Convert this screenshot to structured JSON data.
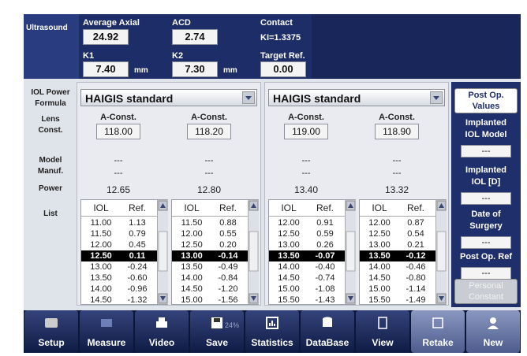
{
  "header": {
    "section": "Ultrasound",
    "fields": [
      {
        "label": "Average Axial",
        "value": "24.92"
      },
      {
        "label": "ACD",
        "value": "2.74"
      },
      {
        "label": "Contact",
        "value": "KI=1.3375"
      },
      {
        "label": "K1",
        "value": "7.40",
        "unit": "mm"
      },
      {
        "label": "K2",
        "value": "7.30",
        "unit": "mm"
      },
      {
        "label": "Target Ref.",
        "value": "0.00"
      }
    ]
  },
  "row_labels": [
    [
      "IOL Power",
      "Formula"
    ],
    [
      "Lens",
      "Const."
    ],
    [
      "Model",
      "Manuf."
    ],
    [
      "Power"
    ],
    [
      "List"
    ]
  ],
  "panels": [
    {
      "formula": "HAIGIS standard",
      "lenses": [
        {
          "const_label": "A-Const.",
          "const": "118.00",
          "model": "---",
          "manuf": "---",
          "power": "12.65",
          "list_headers": [
            "IOL",
            "Ref."
          ],
          "rows": [
            [
              "11.00",
              "1.13"
            ],
            [
              "11.50",
              "0.79"
            ],
            [
              "12.00",
              "0.45"
            ],
            [
              "12.50",
              "0.11"
            ],
            [
              "13.00",
              "-0.24"
            ],
            [
              "13.50",
              "-0.60"
            ],
            [
              "14.00",
              "-0.96"
            ],
            [
              "14.50",
              "-1.32"
            ]
          ]
        },
        {
          "const_label": "A-Const.",
          "const": "118.20",
          "model": "---",
          "manuf": "---",
          "power": "12.80",
          "list_headers": [
            "IOL",
            "Ref."
          ],
          "rows": [
            [
              "11.50",
              "0.88"
            ],
            [
              "12.00",
              "0.55"
            ],
            [
              "12.50",
              "0.20"
            ],
            [
              "13.00",
              "-0.14"
            ],
            [
              "13.50",
              "-0.49"
            ],
            [
              "14.00",
              "-0.84"
            ],
            [
              "14.50",
              "-1.20"
            ],
            [
              "15.00",
              "-1.56"
            ]
          ]
        }
      ]
    },
    {
      "formula": "HAIGIS standard",
      "lenses": [
        {
          "const_label": "A-Const.",
          "const": "119.00",
          "model": "---",
          "manuf": "---",
          "power": "13.40",
          "list_headers": [
            "IOL",
            "Ref."
          ],
          "rows": [
            [
              "12.00",
              "0.91"
            ],
            [
              "12.50",
              "0.59"
            ],
            [
              "13.00",
              "0.26"
            ],
            [
              "13.50",
              "-0.07"
            ],
            [
              "14.00",
              "-0.40"
            ],
            [
              "14.50",
              "-0.74"
            ],
            [
              "15.00",
              "-1.08"
            ],
            [
              "15.50",
              "-1.43"
            ]
          ]
        },
        {
          "const_label": "A-Const.",
          "const": "118.90",
          "model": "---",
          "manuf": "---",
          "power": "13.32",
          "list_headers": [
            "IOL",
            "Ref."
          ],
          "rows": [
            [
              "12.00",
              "0.87"
            ],
            [
              "12.50",
              "0.54"
            ],
            [
              "13.00",
              "0.21"
            ],
            [
              "13.50",
              "-0.12"
            ],
            [
              "14.00",
              "-0.46"
            ],
            [
              "14.50",
              "-0.80"
            ],
            [
              "15.00",
              "-1.14"
            ],
            [
              "15.50",
              "-1.49"
            ]
          ]
        }
      ]
    }
  ],
  "sidebar": {
    "button": [
      "Post Op.",
      "Values"
    ],
    "fields": [
      {
        "label": [
          "Implanted",
          "IOL Model"
        ],
        "value": "---"
      },
      {
        "label": [
          "Implanted",
          "IOL [D]"
        ],
        "value": "---"
      },
      {
        "label": [
          "Date of",
          "Surgery"
        ],
        "value": "---"
      },
      {
        "label": [
          "Post Op. Ref"
        ],
        "value": "---"
      }
    ],
    "footer_button": [
      "Personal",
      "Constant"
    ]
  },
  "toolbar": [
    {
      "label": "Setup"
    },
    {
      "label": "Measure"
    },
    {
      "label": "Video"
    },
    {
      "label": "Save",
      "badge": "24%"
    },
    {
      "label": "Statistics"
    },
    {
      "label": "DataBase"
    },
    {
      "label": "View"
    },
    {
      "label": "Retake"
    },
    {
      "label": "New"
    }
  ]
}
